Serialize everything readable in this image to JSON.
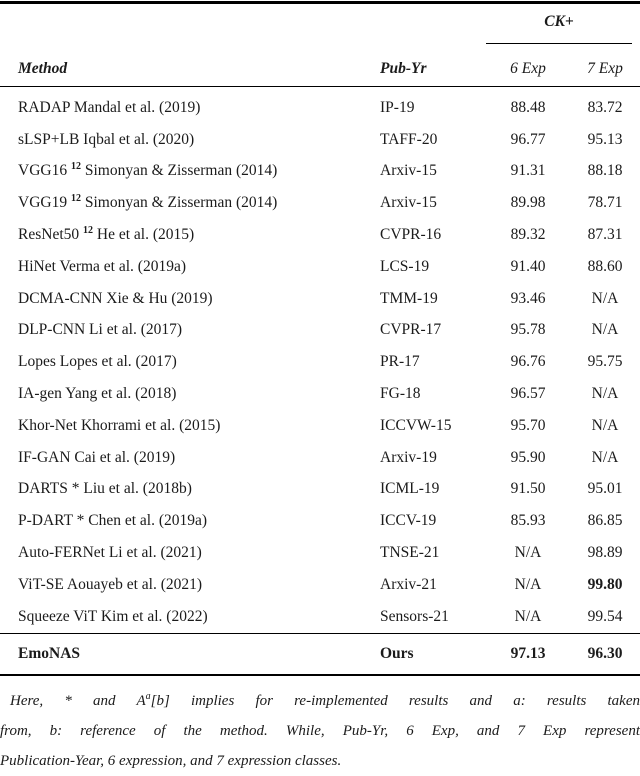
{
  "table": {
    "group_header": "CK+",
    "columns": {
      "method": "Method",
      "pub_yr": "Pub-Yr",
      "six_exp": "6 Exp",
      "seven_exp": "7 Exp"
    },
    "rows": [
      {
        "m1": "RADAP Mandal et al. (2019)",
        "sup": "",
        "m2": "",
        "pub": "IP-19",
        "six_exp": "88.48",
        "seven_exp": "83.72",
        "bold_seven": false
      },
      {
        "m1": "sLSP+LB Iqbal et al. (2020)",
        "sup": "",
        "m2": "",
        "pub": "TAFF-20",
        "six_exp": "96.77",
        "seven_exp": "95.13",
        "bold_seven": false
      },
      {
        "m1": "VGG16",
        "sup": "12",
        "m2": "Simonyan & Zisserman (2014)",
        "pub": "Arxiv-15",
        "six_exp": "91.31",
        "seven_exp": "88.18",
        "bold_seven": false
      },
      {
        "m1": "VGG19",
        "sup": "12",
        "m2": "Simonyan & Zisserman (2014)",
        "pub": "Arxiv-15",
        "six_exp": "89.98",
        "seven_exp": "78.71",
        "bold_seven": false
      },
      {
        "m1": "ResNet50",
        "sup": "12",
        "m2": "He et al. (2015)",
        "pub": "CVPR-16",
        "six_exp": "89.32",
        "seven_exp": "87.31",
        "bold_seven": false
      },
      {
        "m1": "HiNet Verma et al. (2019a)",
        "sup": "",
        "m2": "",
        "pub": "LCS-19",
        "six_exp": "91.40",
        "seven_exp": "88.60",
        "bold_seven": false
      },
      {
        "m1": "DCMA-CNN Xie & Hu (2019)",
        "sup": "",
        "m2": "",
        "pub": "TMM-19",
        "six_exp": "93.46",
        "seven_exp": "N/A",
        "bold_seven": false
      },
      {
        "m1": "DLP-CNN Li et al. (2017)",
        "sup": "",
        "m2": "",
        "pub": "CVPR-17",
        "six_exp": "95.78",
        "seven_exp": "N/A",
        "bold_seven": false
      },
      {
        "m1": "Lopes Lopes et al. (2017)",
        "sup": "",
        "m2": "",
        "pub": "PR-17",
        "six_exp": "96.76",
        "seven_exp": "95.75",
        "bold_seven": false
      },
      {
        "m1": "IA-gen Yang et al. (2018)",
        "sup": "",
        "m2": "",
        "pub": "FG-18",
        "six_exp": "96.57",
        "seven_exp": "N/A",
        "bold_seven": false
      },
      {
        "m1": "Khor-Net Khorrami et al. (2015)",
        "sup": "",
        "m2": "",
        "pub": "ICCVW-15",
        "six_exp": "95.70",
        "seven_exp": "N/A",
        "bold_seven": false
      },
      {
        "m1": "IF-GAN Cai et al. (2019)",
        "sup": "",
        "m2": "",
        "pub": "Arxiv-19",
        "six_exp": "95.90",
        "seven_exp": "N/A",
        "bold_seven": false
      },
      {
        "m1": "DARTS * Liu et al. (2018b)",
        "sup": "",
        "m2": "",
        "pub": "ICML-19",
        "six_exp": "91.50",
        "seven_exp": "95.01",
        "bold_seven": false
      },
      {
        "m1": "P-DART * Chen et al. (2019a)",
        "sup": "",
        "m2": "",
        "pub": "ICCV-19",
        "six_exp": "85.93",
        "seven_exp": "86.85",
        "bold_seven": false
      },
      {
        "m1": "Auto-FERNet Li et al. (2021)",
        "sup": "",
        "m2": "",
        "pub": "TNSE-21",
        "six_exp": "N/A",
        "seven_exp": "98.89",
        "bold_seven": false
      },
      {
        "m1": "ViT-SE Aouayeb et al. (2021)",
        "sup": "",
        "m2": "",
        "pub": "Arxiv-21",
        "six_exp": "N/A",
        "seven_exp": "99.80",
        "bold_seven": true
      },
      {
        "m1": "Squeeze ViT Kim et al. (2022)",
        "sup": "",
        "m2": "",
        "pub": "Sensors-21",
        "six_exp": "N/A",
        "seven_exp": "99.54",
        "bold_seven": false
      }
    ],
    "final_row": {
      "method": "EmoNAS",
      "pub": "Ours",
      "six_exp": "97.13",
      "seven_exp": "96.30"
    }
  },
  "footnote": {
    "line1_pre": "Here, * and A",
    "line1_sup": "a",
    "line1_post": "[b] implies for re-implemented results and a: results taken",
    "line2": "from, b: reference of the method. While, Pub-Yr, 6 Exp, and 7 Exp represent",
    "line3": "Publication-Year, 6 expression, and 7 expression classes."
  },
  "colors": {
    "background": "#ffffff",
    "text": "#1b1b1b",
    "rule": "#000000"
  }
}
